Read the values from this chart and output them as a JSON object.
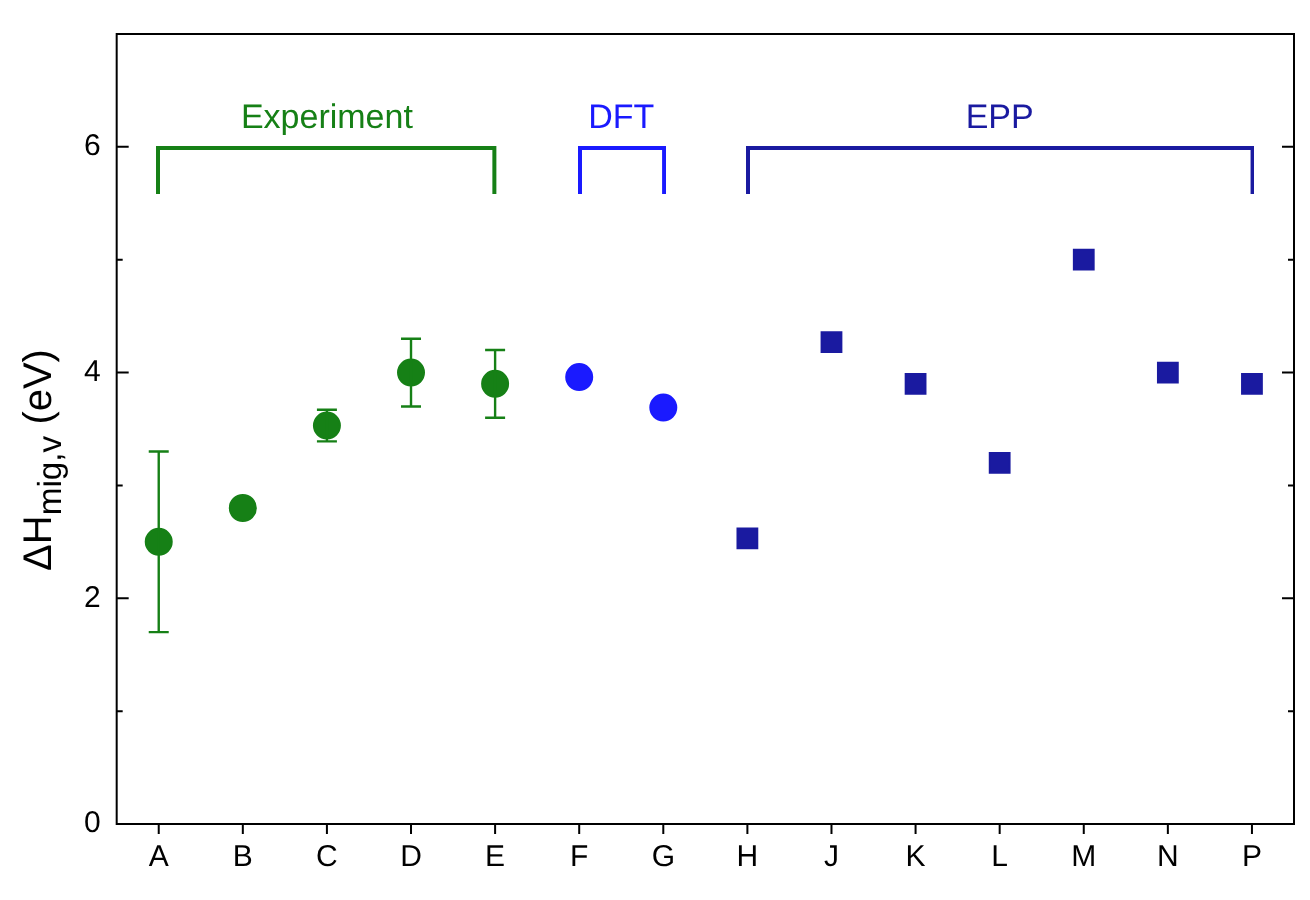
{
  "chart_data": {
    "type": "scatter",
    "ylabel": "ΔH$_{mig,v}$ (eV)",
    "categories": [
      "A",
      "B",
      "C",
      "D",
      "E",
      "F",
      "G",
      "H",
      "J",
      "K",
      "L",
      "M",
      "N",
      "P"
    ],
    "ylim": [
      0,
      7
    ],
    "yticks": [
      0,
      {
        "value": 1,
        "label": null
      },
      2,
      {
        "value": 3,
        "label": null
      },
      4,
      {
        "value": 5,
        "label": null
      },
      6
    ],
    "grid": false,
    "legend": false,
    "series": [
      {
        "name": "Experiment",
        "color": "#168016",
        "marker": "circle",
        "values": [
          2.5,
          2.8,
          3.53,
          4.0,
          3.9,
          null,
          null,
          null,
          null,
          null,
          null,
          null,
          null,
          null
        ],
        "errors": [
          0.8,
          null,
          0.14,
          0.3,
          0.3,
          null,
          null,
          null,
          null,
          null,
          null,
          null,
          null,
          null
        ]
      },
      {
        "name": "DFT",
        "color": "#1a1aff",
        "marker": "circle",
        "values": [
          null,
          null,
          null,
          null,
          null,
          3.96,
          3.69,
          null,
          null,
          null,
          null,
          null,
          null,
          null
        ]
      },
      {
        "name": "EPP",
        "color": "#1a1aa0",
        "marker": "square",
        "values": [
          null,
          null,
          null,
          null,
          null,
          null,
          null,
          2.53,
          4.27,
          3.9,
          3.2,
          5.0,
          4.0,
          3.9
        ]
      }
    ]
  }
}
